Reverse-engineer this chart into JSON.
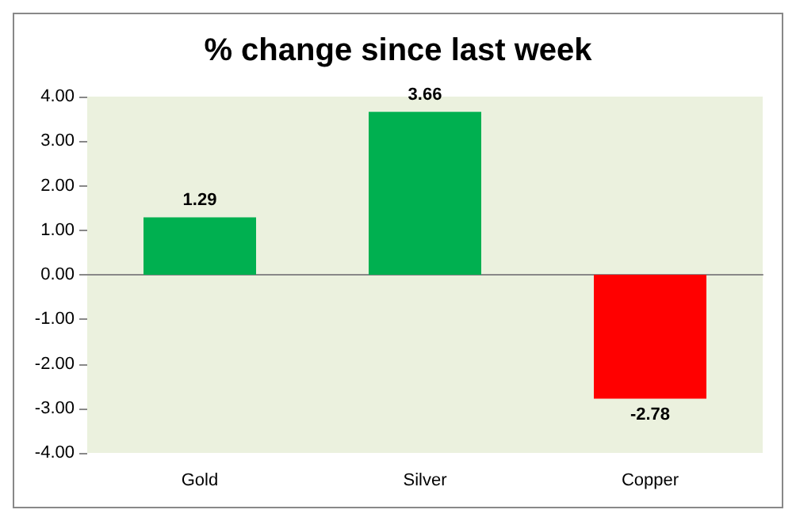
{
  "chart_data": {
    "type": "bar",
    "title": "% change since last week",
    "categories": [
      "Gold",
      "Silver",
      "Copper"
    ],
    "values": [
      1.29,
      3.66,
      -2.78
    ],
    "colors": [
      "#00b050",
      "#00b050",
      "#ff0000"
    ],
    "ylim": [
      -4,
      4
    ],
    "yticks": [
      {
        "value": -4,
        "label": "-4.00"
      },
      {
        "value": -3,
        "label": "-3.00"
      },
      {
        "value": -2,
        "label": "-2.00"
      },
      {
        "value": -1,
        "label": "-1.00"
      },
      {
        "value": 0,
        "label": "0.00"
      },
      {
        "value": 1,
        "label": "1.00"
      },
      {
        "value": 2,
        "label": "2.00"
      },
      {
        "value": 3,
        "label": "3.00"
      },
      {
        "value": 4,
        "label": "4.00"
      }
    ],
    "data_labels": true
  }
}
